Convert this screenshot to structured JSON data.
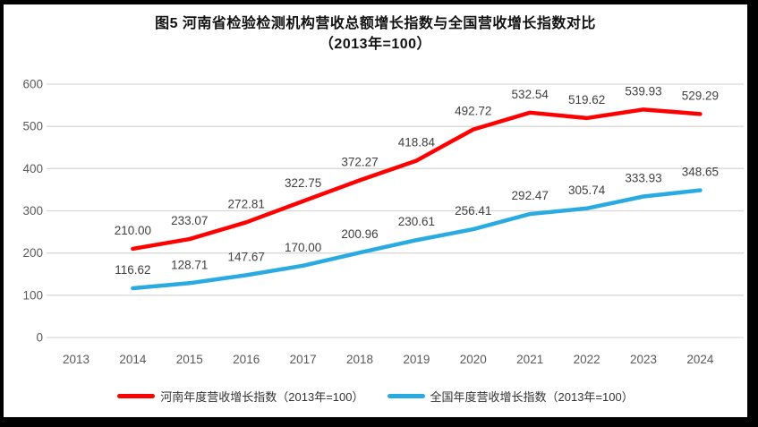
{
  "chart_data": {
    "type": "line",
    "title": "图5  河南省检验检测机构营收总额增长指数与全国营收增长指数对比",
    "subtitle": "（2013年=100）",
    "categories": [
      "2013",
      "2014",
      "2015",
      "2016",
      "2017",
      "2018",
      "2019",
      "2020",
      "2021",
      "2022",
      "2023",
      "2024"
    ],
    "ylim": [
      0,
      600
    ],
    "ytick_step": 100,
    "yticks": [
      "0",
      "100",
      "200",
      "300",
      "400",
      "500",
      "600"
    ],
    "grid": true,
    "legend_position": "bottom",
    "colors": {
      "axis_text": "#595959",
      "gridline": "#D9D9D9",
      "data_label": "#404040",
      "henan_line": "#FF0000",
      "national_line": "#29ABE2"
    },
    "series": [
      {
        "name": "河南年度营收增长指数（2013年=100）",
        "color": "#FF0000",
        "start_category": "2014",
        "values": [
          210.0,
          233.07,
          272.81,
          322.75,
          372.27,
          418.84,
          492.72,
          532.54,
          519.62,
          539.93,
          529.29
        ]
      },
      {
        "name": "全国年度营收增长指数（2013年=100）",
        "color": "#29ABE2",
        "start_category": "2014",
        "values": [
          116.62,
          128.71,
          147.67,
          170.0,
          200.96,
          230.61,
          256.41,
          292.47,
          305.74,
          333.93,
          348.65
        ]
      }
    ]
  }
}
